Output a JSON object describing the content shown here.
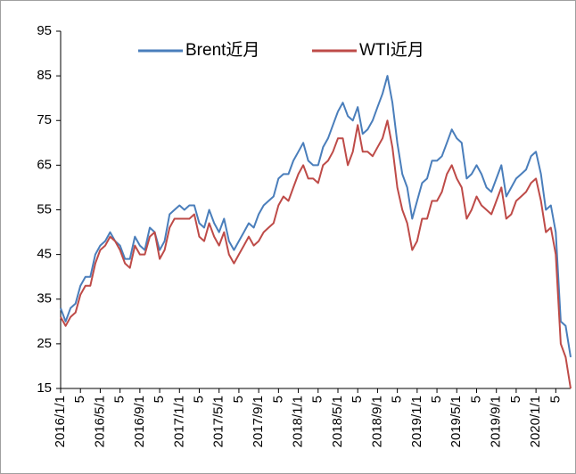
{
  "chart_data": {
    "type": "line",
    "categories": [
      "2016/1/1",
      null,
      null,
      null,
      "5",
      null,
      null,
      null,
      "2016/5/1",
      null,
      null,
      null,
      "5",
      null,
      null,
      null,
      "2016/9/1",
      null,
      null,
      null,
      "5",
      null,
      null,
      null,
      "2017/1/1",
      null,
      null,
      null,
      "5",
      null,
      null,
      null,
      "2017/5/1",
      null,
      null,
      null,
      "5",
      null,
      null,
      null,
      "2017/9/1",
      null,
      null,
      null,
      "5",
      null,
      null,
      null,
      "2018/1/1",
      null,
      null,
      null,
      "5",
      null,
      null,
      null,
      "2018/5/1",
      null,
      null,
      null,
      "5",
      null,
      null,
      null,
      "2018/9/1",
      null,
      null,
      null,
      "5",
      null,
      null,
      null,
      "2019/1/1",
      null,
      null,
      null,
      "5",
      null,
      null,
      null,
      "2019/5/1",
      null,
      null,
      null,
      "5",
      null,
      null,
      null,
      "2019/9/1",
      null,
      null,
      null,
      "5",
      null,
      null,
      null,
      "2020/1/1",
      null,
      null,
      null,
      "5",
      null,
      null,
      null
    ],
    "series": [
      {
        "name": "Brent近月",
        "color": "#4a7ebb",
        "values": [
          33,
          30,
          33,
          34,
          38,
          40,
          40,
          45,
          47,
          48,
          50,
          48,
          47,
          44,
          44,
          49,
          47,
          46,
          51,
          50,
          46,
          48,
          54,
          55,
          56,
          55,
          56,
          56,
          52,
          51,
          55,
          52,
          50,
          53,
          48,
          46,
          48,
          50,
          52,
          51,
          54,
          56,
          57,
          58,
          62,
          63,
          63,
          66,
          68,
          70,
          66,
          65,
          65,
          69,
          71,
          74,
          77,
          79,
          76,
          75,
          78,
          72,
          73,
          75,
          78,
          81,
          85,
          79,
          70,
          63,
          60,
          53,
          57,
          61,
          62,
          66,
          66,
          67,
          70,
          73,
          71,
          70,
          62,
          63,
          65,
          63,
          60,
          59,
          62,
          65,
          58,
          60,
          62,
          63,
          64,
          67,
          68,
          63,
          55,
          56,
          50,
          30,
          29,
          22
        ]
      },
      {
        "name": "WTI近月",
        "color": "#be4b48",
        "values": [
          31,
          29,
          31,
          32,
          36,
          38,
          38,
          43,
          46,
          47,
          49,
          48,
          46,
          43,
          42,
          47,
          45,
          45,
          49,
          50,
          44,
          46,
          51,
          53,
          53,
          53,
          53,
          54,
          49,
          48,
          52,
          49,
          47,
          50,
          45,
          43,
          45,
          47,
          49,
          47,
          48,
          50,
          51,
          52,
          56,
          58,
          57,
          60,
          63,
          65,
          62,
          62,
          61,
          65,
          66,
          68,
          71,
          71,
          65,
          68,
          74,
          68,
          68,
          67,
          69,
          71,
          75,
          69,
          60,
          55,
          52,
          46,
          48,
          53,
          53,
          57,
          57,
          59,
          63,
          65,
          62,
          60,
          53,
          55,
          58,
          56,
          55,
          54,
          57,
          60,
          53,
          54,
          57,
          58,
          59,
          61,
          62,
          57,
          50,
          51,
          45,
          25,
          22,
          15
        ]
      }
    ],
    "ylim": [
      15,
      95
    ],
    "yticks": [
      15,
      25,
      35,
      45,
      55,
      65,
      75,
      85,
      95
    ]
  }
}
